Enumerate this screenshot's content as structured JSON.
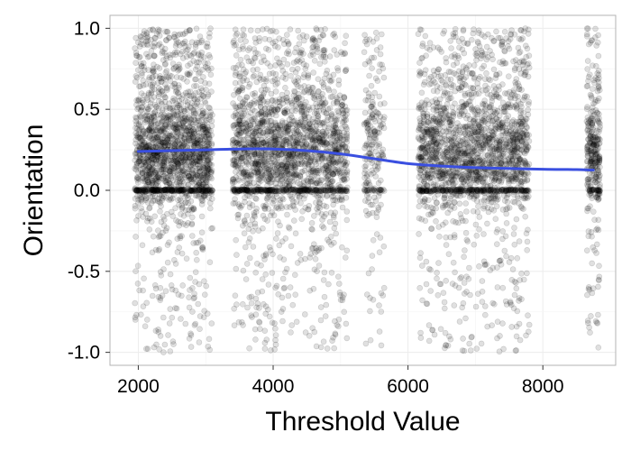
{
  "chart_data": {
    "type": "scatter",
    "title": "",
    "xlabel": "Threshold Value",
    "ylabel": "Orientation",
    "xlim": [
      1580,
      9080
    ],
    "ylim": [
      -1.08,
      1.08
    ],
    "xticks": [
      2000,
      4000,
      6000,
      8000
    ],
    "xtick_labels": [
      "2000",
      "4000",
      "6000",
      "8000"
    ],
    "yticks": [
      -1.0,
      -0.5,
      0.0,
      0.5,
      1.0
    ],
    "ytick_labels": [
      "-1.0",
      "-0.5",
      "0.0",
      "0.5",
      "1.0"
    ],
    "grid": true,
    "legend": "none",
    "point_color": "#000000",
    "point_opacity": 0.12,
    "trend_color": "#3A4FE0",
    "point_clusters": [
      {
        "x": [
          1950,
          2250
        ],
        "density": 1.0
      },
      {
        "x": [
          2250,
          2500
        ],
        "density": 1.0
      },
      {
        "x": [
          2500,
          2750
        ],
        "density": 0.95
      },
      {
        "x": [
          2750,
          3100
        ],
        "density": 0.95
      },
      {
        "x": [
          3400,
          3800
        ],
        "density": 0.8
      },
      {
        "x": [
          3800,
          4250
        ],
        "density": 0.8
      },
      {
        "x": [
          4250,
          4650
        ],
        "density": 0.75
      },
      {
        "x": [
          4650,
          5100
        ],
        "density": 0.7
      },
      {
        "x": [
          5350,
          5650
        ],
        "density": 0.45
      },
      {
        "x": [
          6150,
          6600
        ],
        "density": 0.75
      },
      {
        "x": [
          6600,
          7000
        ],
        "density": 0.75
      },
      {
        "x": [
          7000,
          7400
        ],
        "density": 0.75
      },
      {
        "x": [
          7400,
          7800
        ],
        "density": 0.75
      },
      {
        "x": [
          8650,
          8850
        ],
        "density": 1.0
      }
    ],
    "trend_line": {
      "x": [
        2000,
        2500,
        3000,
        3500,
        4000,
        4500,
        5000,
        5500,
        6000,
        6500,
        7000,
        7500,
        8000,
        8500,
        8750
      ],
      "y": [
        0.24,
        0.245,
        0.25,
        0.255,
        0.255,
        0.245,
        0.225,
        0.195,
        0.165,
        0.15,
        0.14,
        0.135,
        0.13,
        0.128,
        0.125
      ]
    }
  }
}
